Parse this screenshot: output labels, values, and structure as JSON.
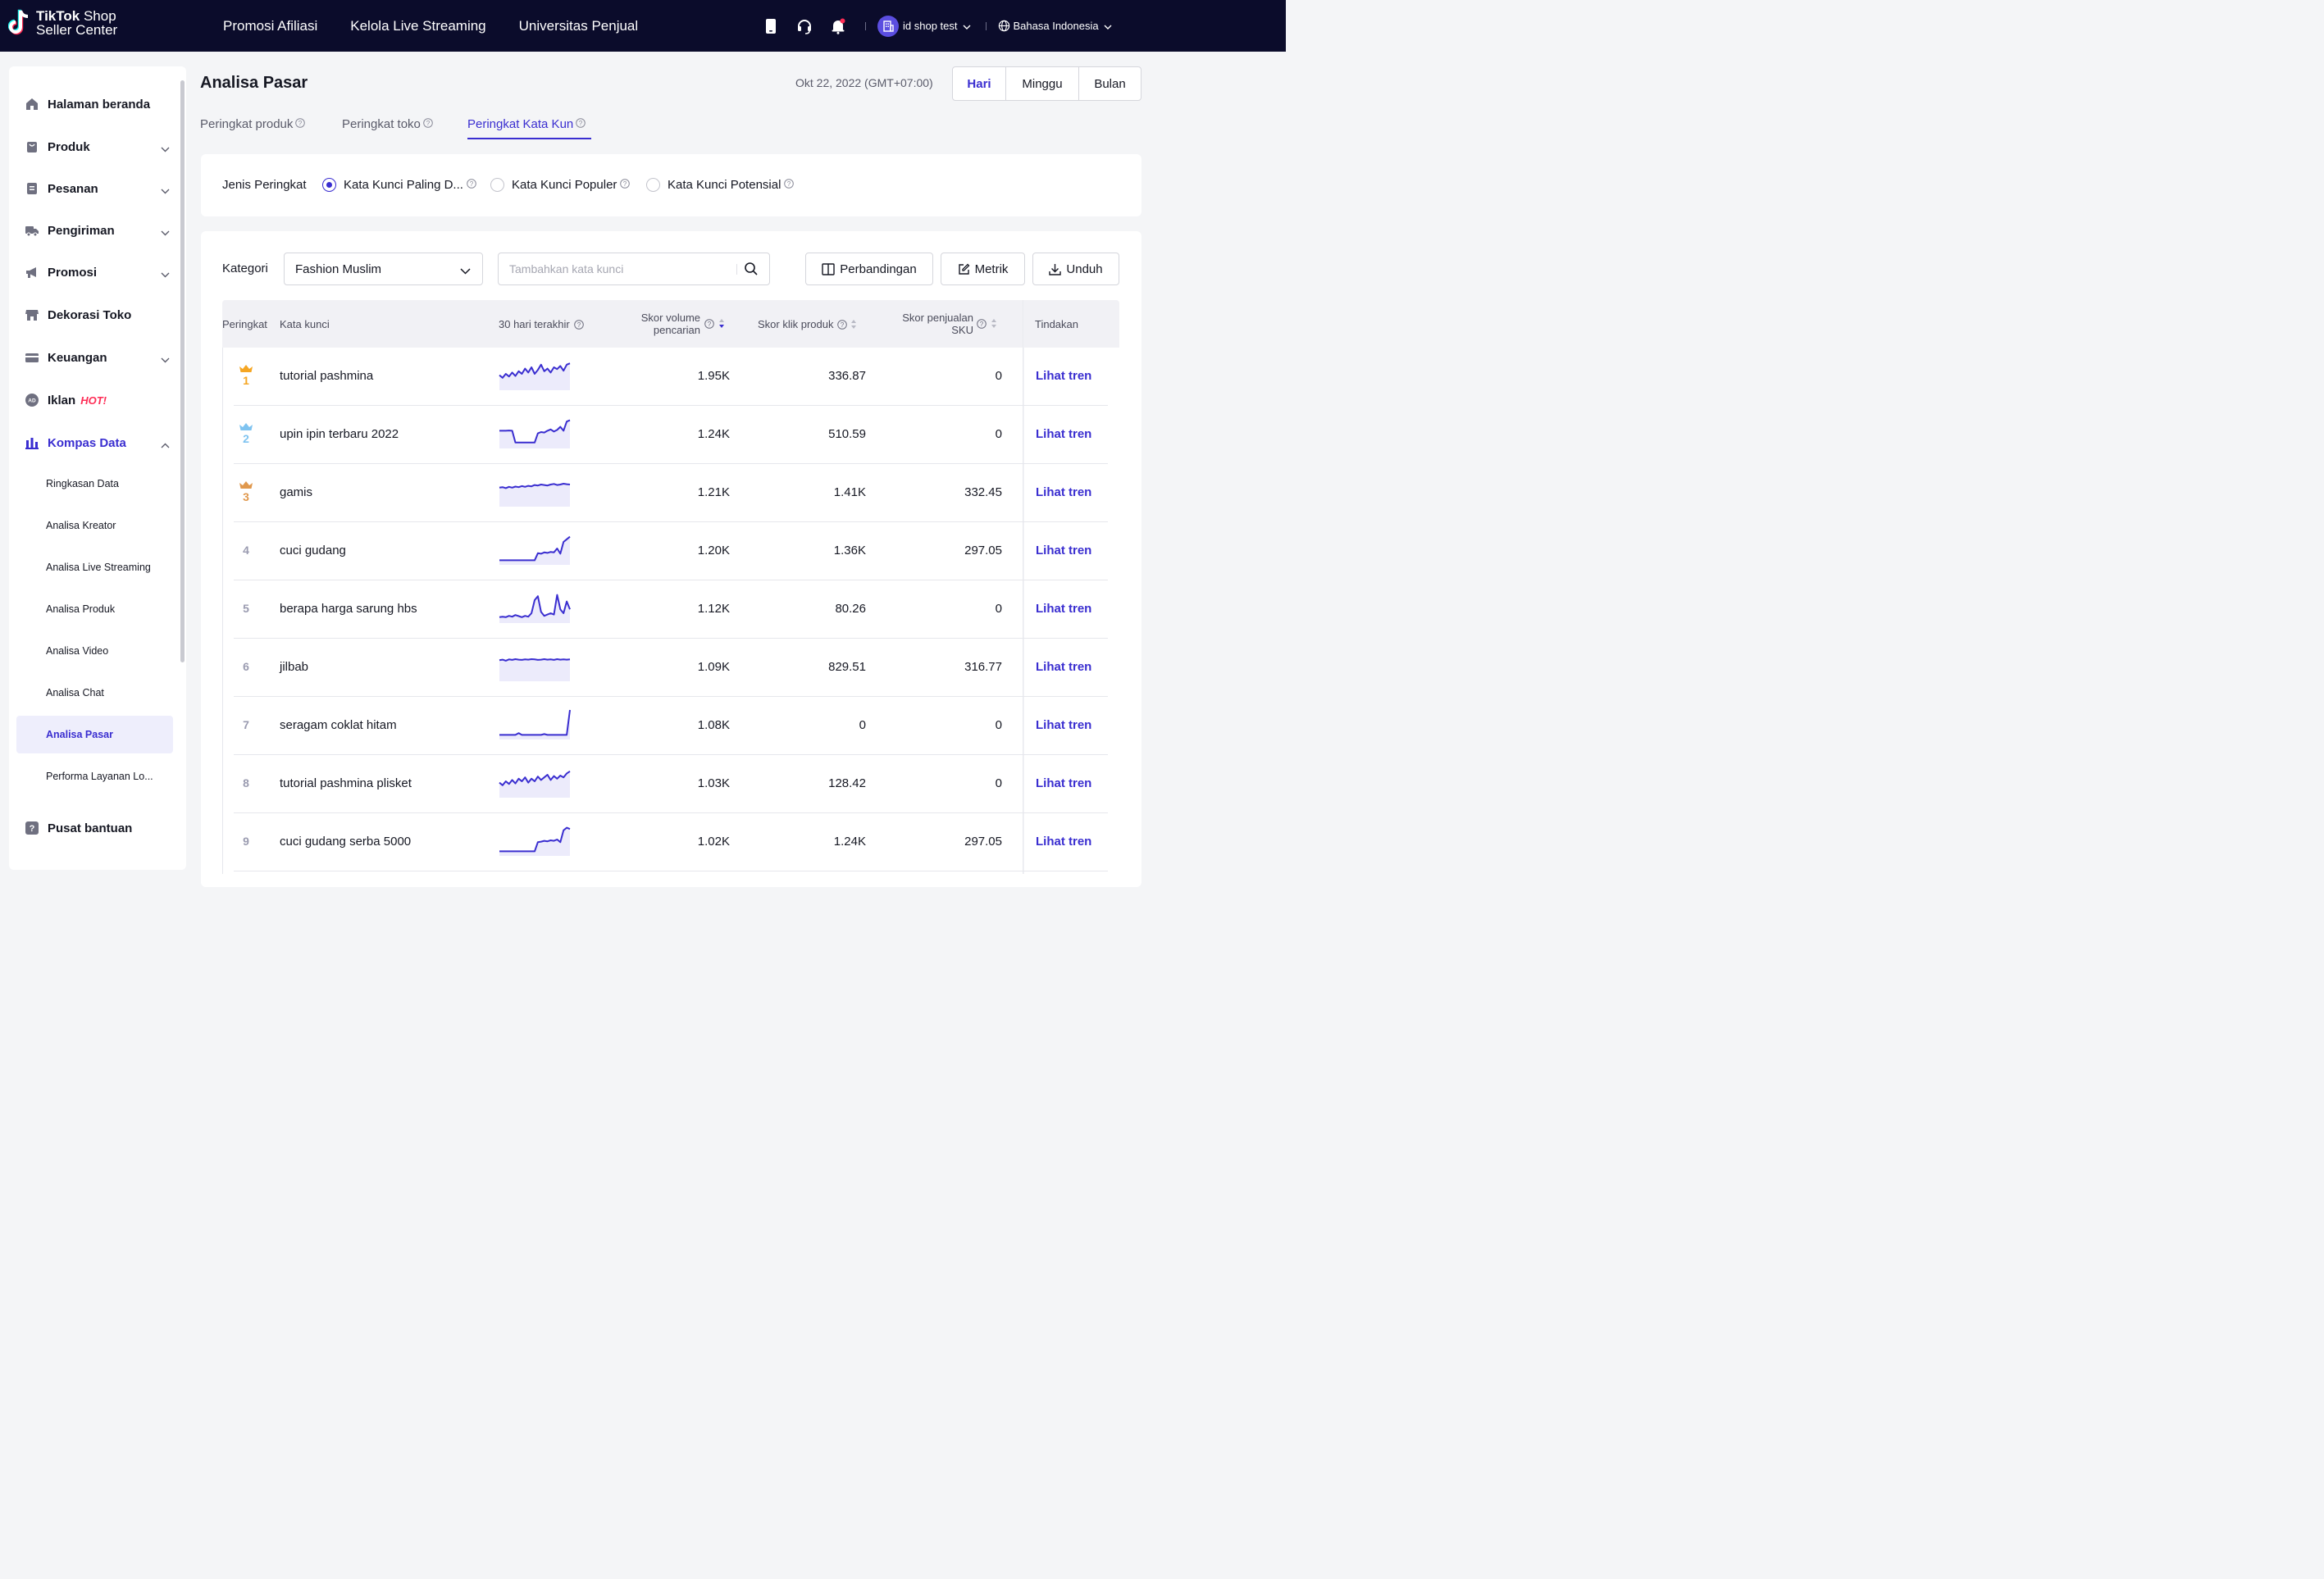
{
  "brand": {
    "name_bold": "TikTok",
    "name_rest": " Shop",
    "line2": "Seller Center"
  },
  "topnav": [
    "Promosi Afiliasi",
    "Kelola Live Streaming",
    "Universitas Penjual"
  ],
  "header_right": {
    "shop_name": "id shop test",
    "language": "Bahasa Indonesia"
  },
  "sidebar": {
    "items": [
      {
        "label": "Halaman beranda",
        "icon": "home-icon"
      },
      {
        "label": "Produk",
        "icon": "bag-icon"
      },
      {
        "label": "Pesanan",
        "icon": "order-icon"
      },
      {
        "label": "Pengiriman",
        "icon": "truck-icon"
      },
      {
        "label": "Promosi",
        "icon": "megaphone-icon"
      },
      {
        "label": "Dekorasi Toko",
        "icon": "store-icon"
      },
      {
        "label": "Keuangan",
        "icon": "card-icon"
      },
      {
        "label": "Iklan",
        "icon": "ad-icon",
        "badge": "HOT!"
      },
      {
        "label": "Kompas Data",
        "icon": "chart-icon"
      }
    ],
    "sub": [
      "Ringkasan Data",
      "Analisa Kreator",
      "Analisa Live Streaming",
      "Analisa Produk",
      "Analisa Video",
      "Analisa Chat",
      "Analisa Pasar",
      "Performa Layanan Lo..."
    ],
    "help": "Pusat bantuan"
  },
  "page": {
    "title": "Analisa Pasar",
    "date": "Okt 22, 2022 (GMT+07:00)",
    "periods": [
      "Hari",
      "Minggu",
      "Bulan"
    ],
    "tabs": [
      "Peringkat produk",
      "Peringkat toko",
      "Peringkat Kata Kun"
    ]
  },
  "filter": {
    "label": "Jenis Peringkat",
    "options": [
      "Kata Kunci Paling D...",
      "Kata Kunci Populer",
      "Kata Kunci Potensial"
    ]
  },
  "toolbar": {
    "category_label": "Kategori",
    "category_value": "Fashion Muslim",
    "search_placeholder": "Tambahkan kata kunci",
    "compare": "Perbandingan",
    "metric": "Metrik",
    "download": "Unduh"
  },
  "table": {
    "headers": {
      "rank": "Peringkat",
      "keyword": "Kata kunci",
      "trend": "30 hari terakhir",
      "search_l1": "Skor volume",
      "search_l2": "pencarian",
      "click": "Skor klik produk",
      "sales_l1": "Skor penjualan",
      "sales_l2": "SKU",
      "action": "Tindakan"
    },
    "rows": [
      {
        "rank": "1",
        "keyword": "tutorial pashmina",
        "search": "1.95K",
        "click": "336.87",
        "sales": "0",
        "action": "Lihat tren",
        "trend": [
          0.45,
          0.35,
          0.5,
          0.4,
          0.55,
          0.42,
          0.6,
          0.5,
          0.7,
          0.55,
          0.75,
          0.5,
          0.65,
          0.85,
          0.6,
          0.7,
          0.55,
          0.75,
          0.68,
          0.8,
          0.62,
          0.85,
          0.9
        ]
      },
      {
        "rank": "2",
        "keyword": "upin ipin terbaru 2022",
        "search": "1.24K",
        "click": "510.59",
        "sales": "0",
        "action": "Lihat tren",
        "trend": [
          0.55,
          0.55,
          0.55,
          0.56,
          0.55,
          0.1,
          0.1,
          0.1,
          0.1,
          0.1,
          0.1,
          0.1,
          0.45,
          0.5,
          0.48,
          0.55,
          0.6,
          0.52,
          0.58,
          0.7,
          0.55,
          0.9,
          0.95
        ]
      },
      {
        "rank": "3",
        "keyword": "gamis",
        "search": "1.21K",
        "click": "1.41K",
        "sales": "332.45",
        "action": "Lihat tren",
        "trend": [
          0.6,
          0.62,
          0.58,
          0.63,
          0.6,
          0.64,
          0.62,
          0.66,
          0.63,
          0.67,
          0.65,
          0.7,
          0.68,
          0.72,
          0.7,
          0.68,
          0.72,
          0.74,
          0.7,
          0.72,
          0.75,
          0.73,
          0.72
        ]
      },
      {
        "rank": "4",
        "keyword": "cuci gudang",
        "search": "1.20K",
        "click": "1.36K",
        "sales": "297.05",
        "action": "Lihat tren",
        "trend": [
          0.05,
          0.05,
          0.05,
          0.05,
          0.05,
          0.05,
          0.05,
          0.05,
          0.05,
          0.05,
          0.05,
          0.05,
          0.32,
          0.3,
          0.35,
          0.33,
          0.37,
          0.35,
          0.5,
          0.3,
          0.75,
          0.85,
          0.95
        ]
      },
      {
        "rank": "5",
        "keyword": "berapa harga sarung hbs",
        "search": "1.12K",
        "click": "80.26",
        "sales": "0",
        "action": "Lihat tren",
        "trend": [
          0.1,
          0.12,
          0.1,
          0.15,
          0.12,
          0.18,
          0.14,
          0.1,
          0.15,
          0.12,
          0.25,
          0.75,
          0.9,
          0.3,
          0.15,
          0.2,
          0.25,
          0.2,
          0.95,
          0.4,
          0.25,
          0.7,
          0.4
        ]
      },
      {
        "rank": "6",
        "keyword": "jilbab",
        "search": "1.09K",
        "click": "829.51",
        "sales": "316.77",
        "action": "Lihat tren",
        "trend": [
          0.68,
          0.7,
          0.66,
          0.71,
          0.69,
          0.72,
          0.7,
          0.69,
          0.71,
          0.7,
          0.72,
          0.71,
          0.69,
          0.7,
          0.72,
          0.7,
          0.71,
          0.69,
          0.72,
          0.7,
          0.71,
          0.7,
          0.71
        ]
      },
      {
        "rank": "7",
        "keyword": "seragam coklat hitam",
        "search": "1.08K",
        "click": "0",
        "sales": "0",
        "action": "Lihat tren",
        "trend": [
          0.05,
          0.05,
          0.05,
          0.05,
          0.05,
          0.05,
          0.12,
          0.05,
          0.05,
          0.05,
          0.05,
          0.05,
          0.05,
          0.05,
          0.08,
          0.05,
          0.05,
          0.05,
          0.05,
          0.05,
          0.05,
          0.05,
          1.0
        ]
      },
      {
        "rank": "8",
        "keyword": "tutorial pashmina plisket",
        "search": "1.03K",
        "click": "128.42",
        "sales": "0",
        "action": "Lihat tren",
        "trend": [
          0.45,
          0.35,
          0.5,
          0.4,
          0.55,
          0.42,
          0.6,
          0.5,
          0.65,
          0.45,
          0.6,
          0.5,
          0.68,
          0.55,
          0.65,
          0.75,
          0.55,
          0.7,
          0.6,
          0.72,
          0.65,
          0.8,
          0.88
        ]
      },
      {
        "rank": "9",
        "keyword": "cuci gudang serba 5000",
        "search": "1.02K",
        "click": "1.24K",
        "sales": "297.05",
        "action": "Lihat tren",
        "trend": [
          0.05,
          0.05,
          0.05,
          0.05,
          0.05,
          0.05,
          0.05,
          0.05,
          0.05,
          0.05,
          0.05,
          0.05,
          0.4,
          0.42,
          0.45,
          0.43,
          0.47,
          0.45,
          0.5,
          0.4,
          0.85,
          0.95,
          0.9
        ]
      }
    ]
  },
  "colors": {
    "accent": "#3a2ed0",
    "topbar": "#0b0c2b",
    "gold": "#f5a623",
    "silver": "#7ec3f0",
    "bronze": "#e0984d",
    "hot": "#fe2c55"
  }
}
